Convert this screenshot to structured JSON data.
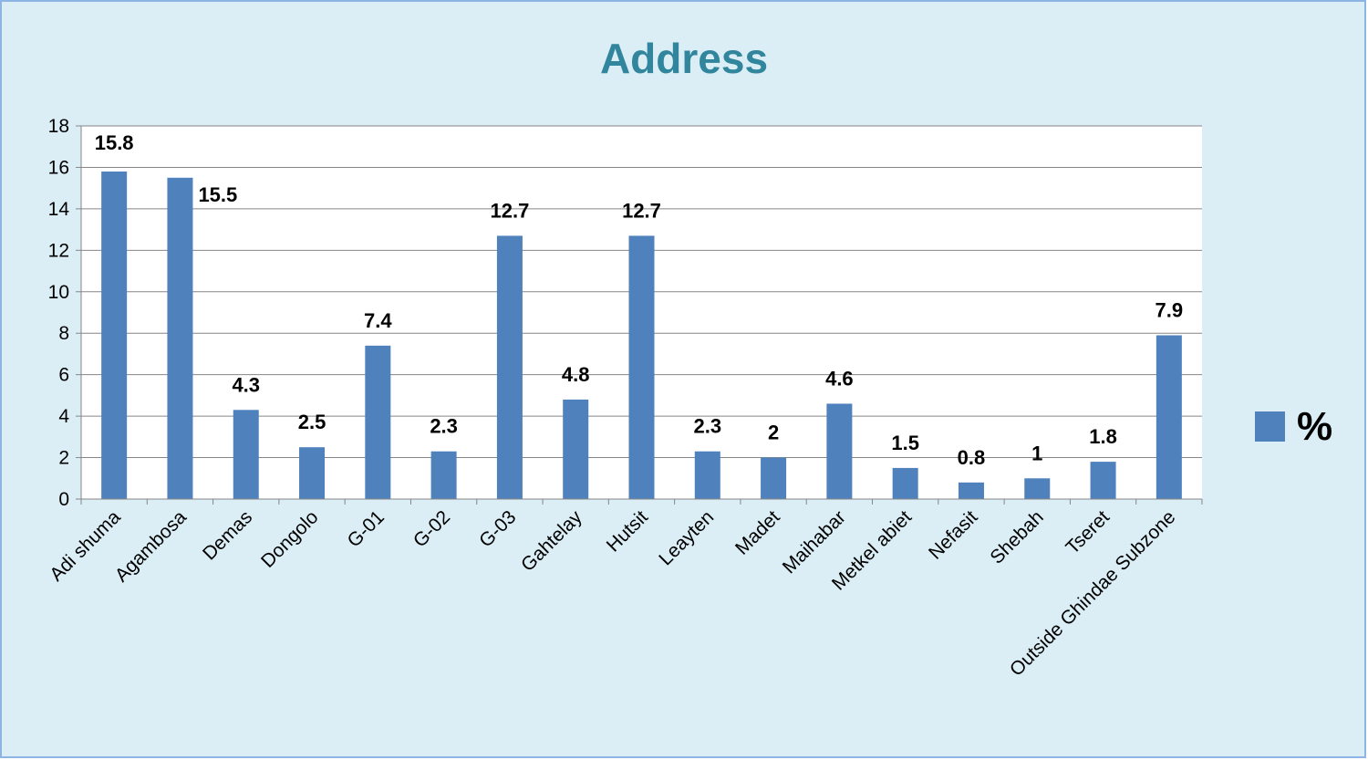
{
  "chart_data": {
    "type": "bar",
    "title": "Address",
    "categories": [
      "Adi shuma",
      "Agambosa",
      "Demas",
      "Dongolo",
      "G-01",
      "G-02",
      "G-03",
      "Gahtelay",
      "Hutsit",
      "Leayten",
      "Madet",
      "Maihabar",
      "Metkel abiet",
      "Nefasit",
      "Shebah",
      "Tseret",
      "Outside  Ghindae Subzone"
    ],
    "series": [
      {
        "name": "%",
        "values": [
          15.8,
          15.5,
          4.3,
          2.5,
          7.4,
          2.3,
          12.7,
          4.8,
          12.7,
          2.3,
          2,
          4.6,
          1.5,
          0.8,
          1,
          1.8,
          7.9
        ],
        "labels": [
          "15.8",
          "15.5",
          "4.3",
          "2.5",
          "7.4",
          "2.3",
          "12.7",
          "4.8",
          "12.7",
          "2.3",
          "2",
          "4.6",
          "1.5",
          "0.8",
          "1",
          "1.8",
          "7.9"
        ]
      }
    ],
    "yticks": [
      "0",
      "2",
      "4",
      "6",
      "8",
      "10",
      "12",
      "14",
      "16",
      "18"
    ],
    "ylim": [
      0,
      18
    ],
    "grid": true,
    "legend": "right",
    "colors": {
      "bar": "#4f81bd",
      "title": "#31859c",
      "background": "#dbeef6",
      "plot_background": "#ffffff",
      "gridline": "#868686"
    }
  }
}
